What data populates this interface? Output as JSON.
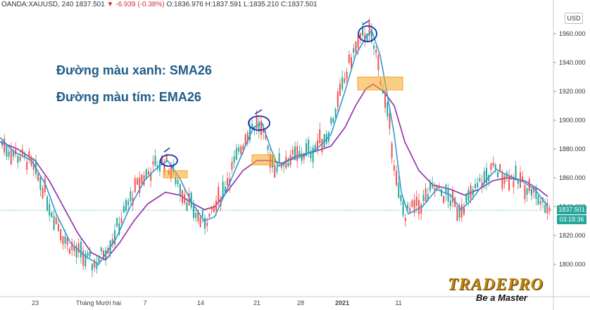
{
  "header": {
    "symbol": "OANDA:XAUUSD, 240",
    "last": "1837.501",
    "change_arrow": "▼",
    "change": "-6.939 (-0.38%)",
    "o": "O:1836.976",
    "h": "H:1837.591",
    "l": "L:1835.210",
    "c": "C:1837.501"
  },
  "currency": "USD",
  "annotations": {
    "sma_label": "Đường màu xanh: SMA26",
    "ema_label": "Đường màu tím: EMA26"
  },
  "price_tag": "1837.501",
  "time_tag": "03:18:36",
  "logo": {
    "name": "TRADEPRO",
    "slogan": "Be a Master"
  },
  "colors": {
    "sma": "#2e9bd6",
    "ema": "#8e2ba8",
    "up": "#26a69a",
    "down": "#ef5350",
    "box": "#f5a623"
  },
  "chart_data": {
    "type": "candlestick",
    "y_ticks": [
      "1960.000",
      "1940.000",
      "1920.000",
      "1900.000",
      "1880.000",
      "1860.000",
      "1840.000",
      "1820.000",
      "1800.000"
    ],
    "y_values": [
      1960,
      1940,
      1920,
      1900,
      1880,
      1860,
      1840,
      1820,
      1800
    ],
    "x_ticks": [
      "23",
      "Tháng Mười hai",
      "7",
      "14",
      "21",
      "28",
      "2021",
      "11"
    ],
    "current_price": 1837.501,
    "series": [
      {
        "name": "SMA26",
        "color": "#2e9bd6"
      },
      {
        "name": "EMA26",
        "color": "#8e2ba8"
      }
    ]
  }
}
